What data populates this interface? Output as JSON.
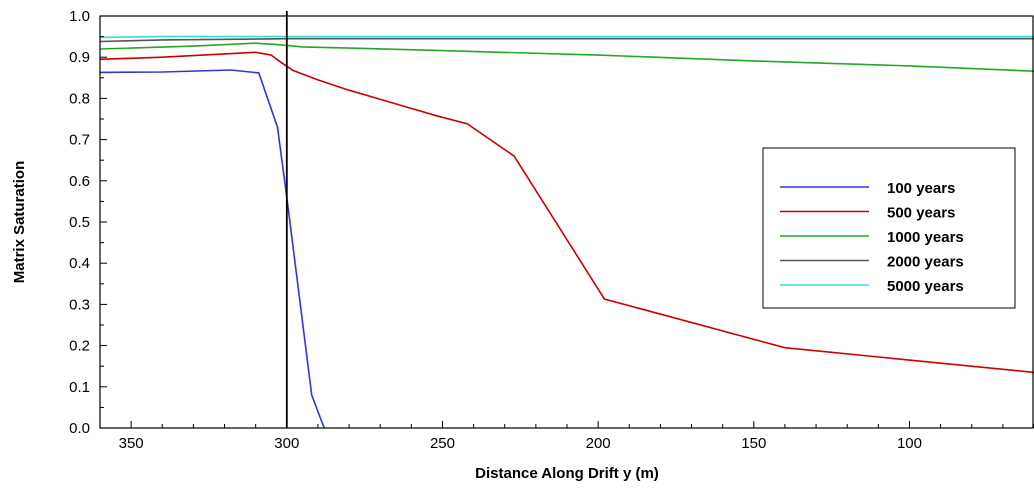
{
  "chart_data": {
    "type": "line",
    "xlabel": "Distance Along Drift y  (m)",
    "ylabel": "Matrix Saturation",
    "xlim": [
      360,
      60
    ],
    "ylim": [
      0,
      1.0
    ],
    "x_reversed": true,
    "x_ticks": [
      350,
      300,
      250,
      200,
      150,
      100
    ],
    "y_ticks": [
      0.0,
      0.1,
      0.2,
      0.3,
      0.4,
      0.5,
      0.6,
      0.7,
      0.8,
      0.9,
      1.0
    ],
    "x_tick_labels": [
      "350",
      "300",
      "250",
      "200",
      "150",
      "100"
    ],
    "y_tick_labels": [
      "0.0",
      "0.1",
      "0.2",
      "0.3",
      "0.4",
      "0.5",
      "0.6",
      "0.7",
      "0.8",
      "0.9",
      "1.0"
    ],
    "grid": false,
    "legend_position": "right",
    "reference_line_x": 300,
    "series": [
      {
        "name": "100 years",
        "color": "#3333dd",
        "x": [
          360,
          340,
          318,
          309,
          303,
          300,
          292,
          288
        ],
        "y": [
          0.863,
          0.864,
          0.869,
          0.862,
          0.73,
          0.56,
          0.08,
          0.0
        ]
      },
      {
        "name": "500 years",
        "color": "#cc0000",
        "x": [
          360,
          340,
          320,
          310,
          305,
          302,
          298,
          290,
          280,
          262,
          252,
          242,
          227,
          198,
          140,
          60
        ],
        "y": [
          0.895,
          0.9,
          0.908,
          0.912,
          0.905,
          0.888,
          0.868,
          0.845,
          0.82,
          0.78,
          0.758,
          0.738,
          0.66,
          0.313,
          0.195,
          0.135
        ]
      },
      {
        "name": "1000 years",
        "color": "#22aa22",
        "x": [
          360,
          330,
          310,
          302,
          295,
          280,
          250,
          200,
          150,
          100,
          60
        ],
        "y": [
          0.92,
          0.927,
          0.934,
          0.93,
          0.925,
          0.922,
          0.916,
          0.905,
          0.891,
          0.879,
          0.866
        ]
      },
      {
        "name": "2000 years",
        "color": "#555555",
        "x": [
          360,
          340,
          310,
          300,
          250,
          200,
          150,
          100,
          60
        ],
        "y": [
          0.938,
          0.942,
          0.944,
          0.945,
          0.945,
          0.945,
          0.945,
          0.945,
          0.945
        ]
      },
      {
        "name": "5000 years",
        "color": "#33dddd",
        "x": [
          360,
          340,
          300,
          250,
          200,
          150,
          100,
          60
        ],
        "y": [
          0.948,
          0.95,
          0.95,
          0.95,
          0.95,
          0.95,
          0.95,
          0.95
        ]
      }
    ]
  }
}
